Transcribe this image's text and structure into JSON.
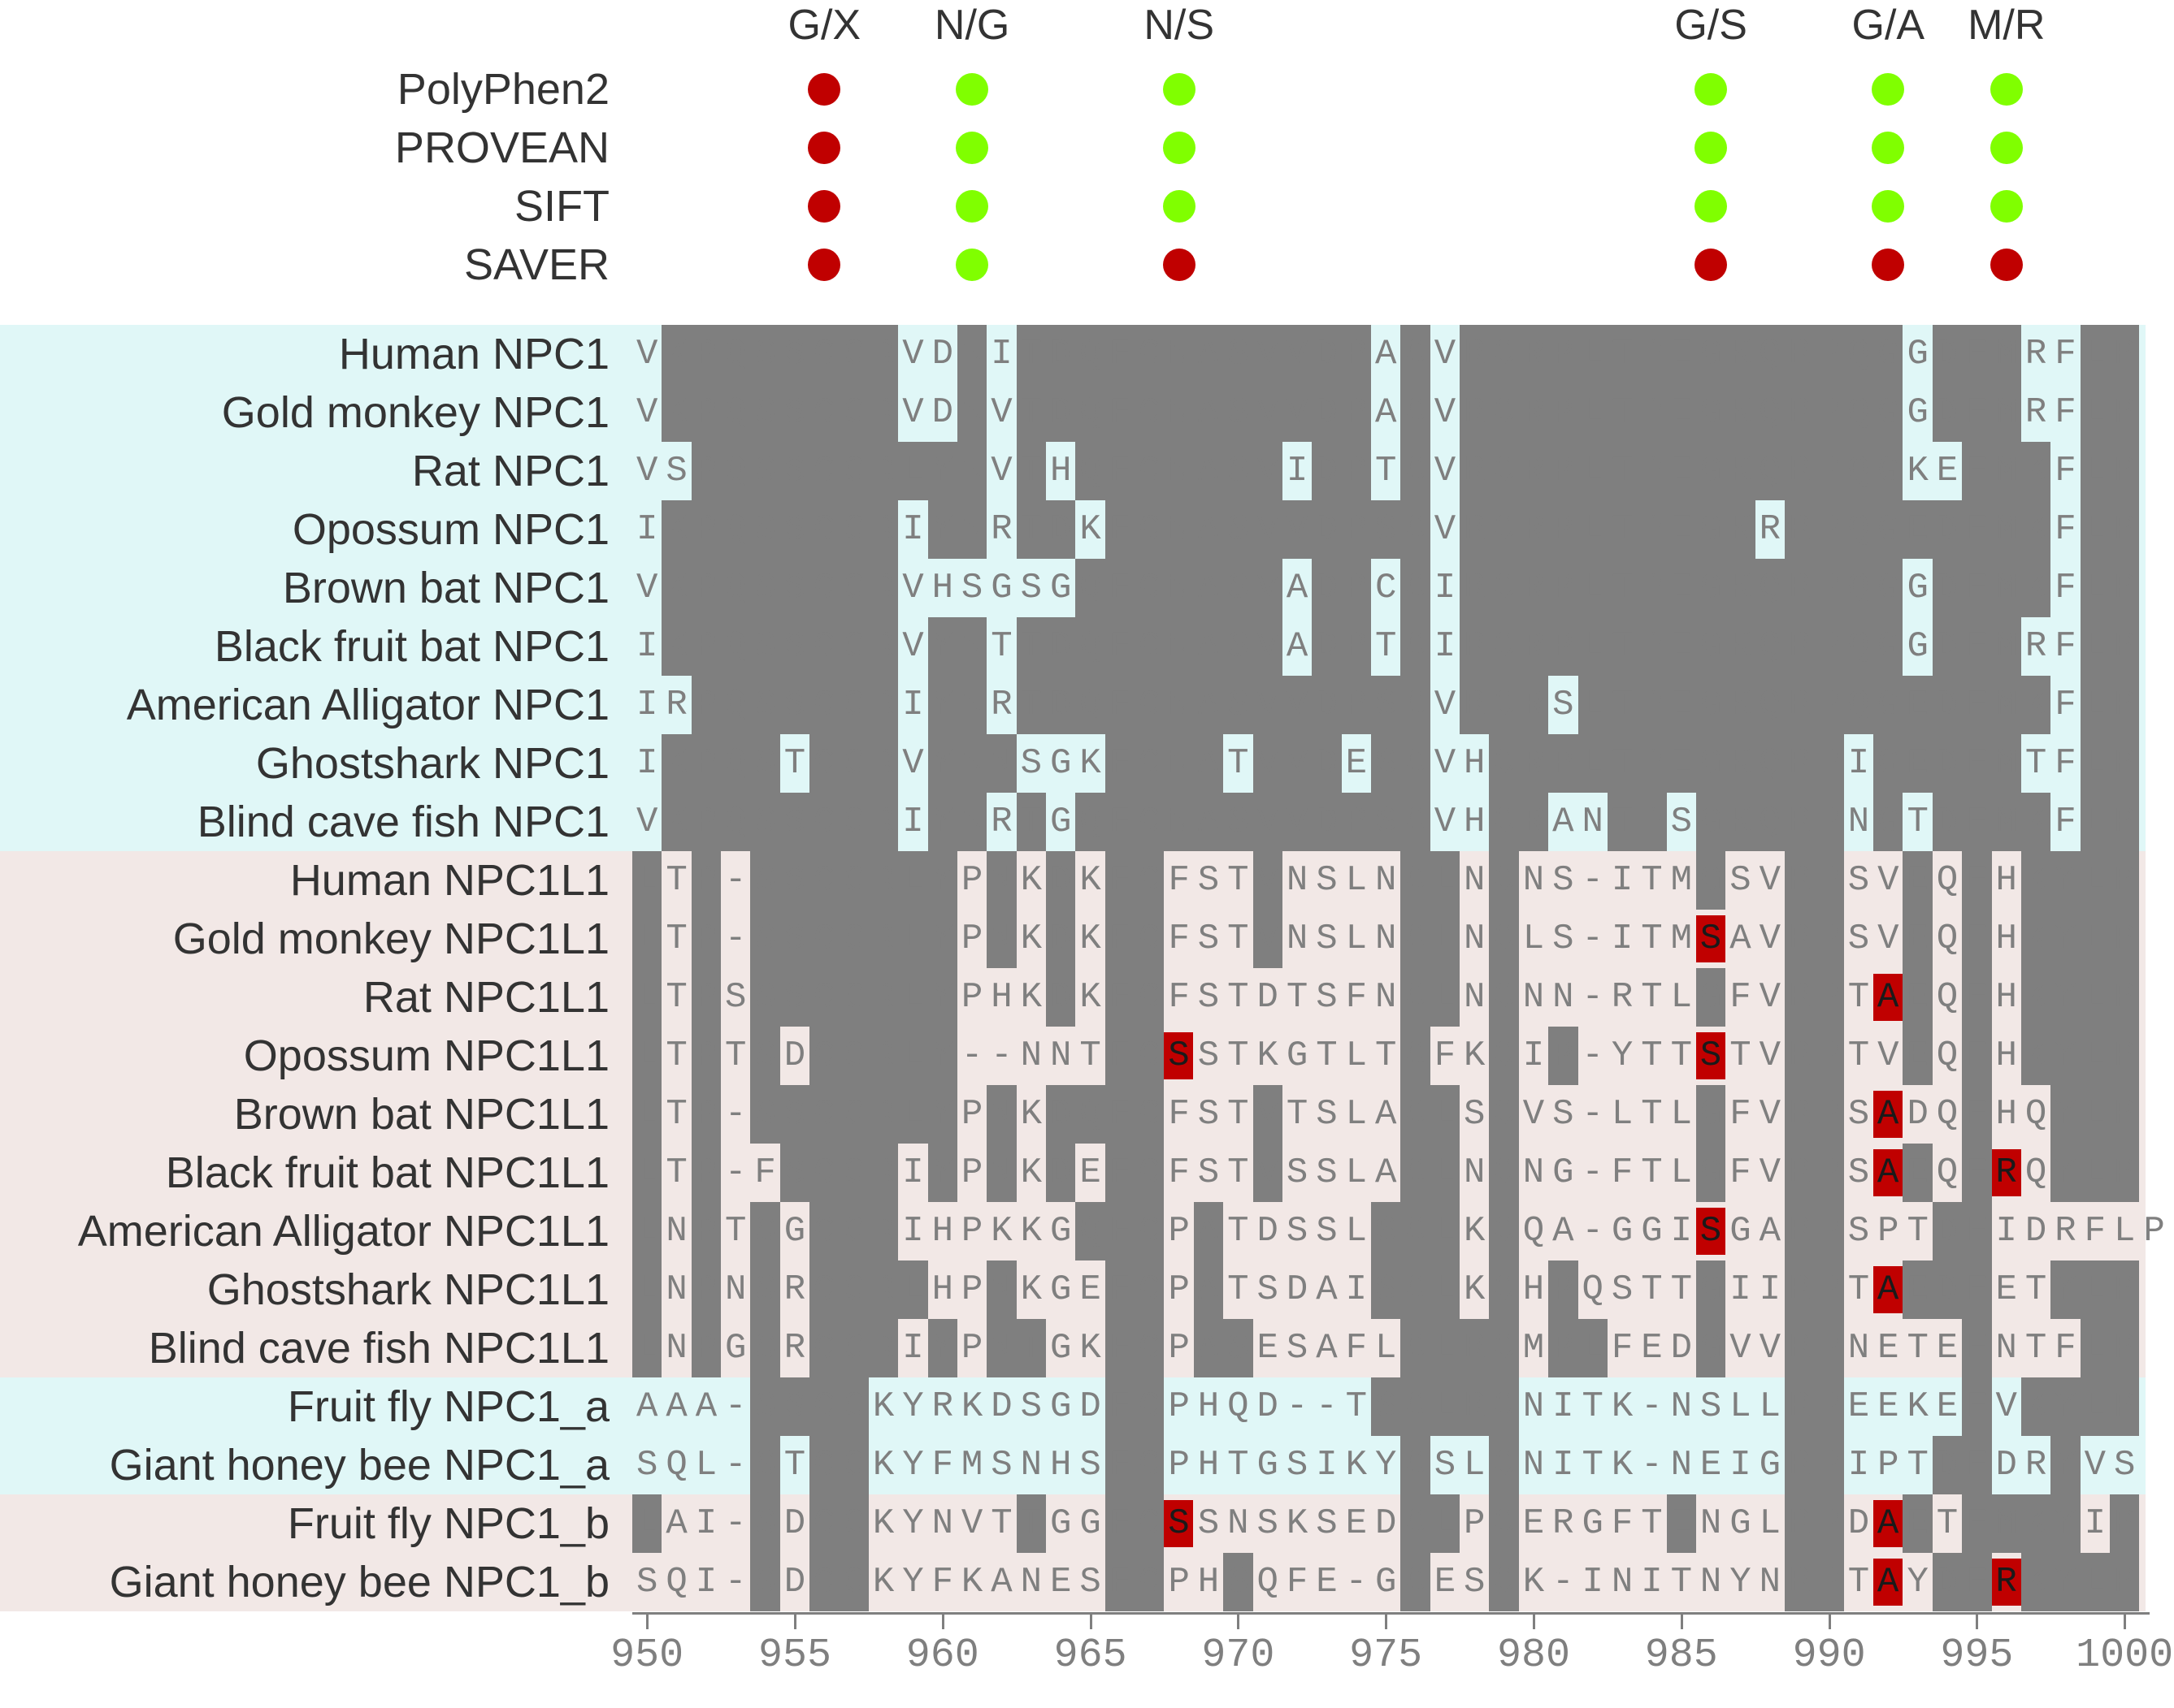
{
  "colors": {
    "damaging": "#c00000",
    "tolerated": "#80ff00",
    "conserved_bg": "#7f7f7f",
    "divergent_bg": "#e0f7f7",
    "npc1_band": "#e0f7f7",
    "npc1l1_band": "#f2e8e6",
    "npc1a_band": "#e0f7f7",
    "npc1b_band": "#f2e8e6",
    "highlight": "#c00000"
  },
  "mutations": [
    {
      "label": "G/X",
      "position": 956
    },
    {
      "label": "N/G",
      "position": 961
    },
    {
      "label": "N/S",
      "position": 968
    },
    {
      "label": "G/S",
      "position": 986
    },
    {
      "label": "G/A",
      "position": 992
    },
    {
      "label": "M/R",
      "position": 996
    }
  ],
  "predictors": [
    {
      "name": "PolyPhen2",
      "calls": [
        "damaging",
        "tolerated",
        "tolerated",
        "tolerated",
        "tolerated",
        "tolerated"
      ]
    },
    {
      "name": "PROVEAN",
      "calls": [
        "damaging",
        "tolerated",
        "tolerated",
        "tolerated",
        "tolerated",
        "tolerated"
      ]
    },
    {
      "name": "SIFT",
      "calls": [
        "damaging",
        "tolerated",
        "tolerated",
        "tolerated",
        "tolerated",
        "tolerated"
      ]
    },
    {
      "name": "SAVER",
      "calls": [
        "damaging",
        "tolerated",
        "damaging",
        "damaging",
        "damaging",
        "damaging"
      ]
    }
  ],
  "alignment": {
    "start": 950,
    "sequences": [
      {
        "name": "Human NPC1",
        "group": "npc1",
        "seq": "VKPQSSCCRVDNITDQFCNASVVDPACVRCRPLTPEGKQRPQGGDFMRFLP"
      },
      {
        "name": "Gold monkey NPC1",
        "group": "npc1",
        "seq": "VKPQSSCCRVDNVTDQFCNASVVDPACVRCRPLTPEGKQRPQGGDFMRFLP"
      },
      {
        "name": "Rat NPC1",
        "group": "npc1",
        "seq": "VSPQSSCCRLYNVTHQFCNASVIDPTCVRCRPLTPEGKQRPQGKEFMKFLP"
      },
      {
        "name": "Opossum NPC1",
        "group": "npc1",
        "seq": "IKPQSSCCRIYNRTDKFCNASVVDPSCVRCRPLTPEGKRRPQGEDFMKFLP"
      },
      {
        "name": "Brown bat NPC1",
        "group": "npc1",
        "seq": "VKPQSSCCRVHSGSGQFCNASVADPCCIRCRPLTPEGKQRPQGGDFMKFLP"
      },
      {
        "name": "Black fruit bat NPC1",
        "group": "npc1",
        "seq": "IKPQSSCCRVYNTTDQFCNASVADPTCIRCRPLTPEGKQRPQGGDFMRFLP"
      },
      {
        "name": "American Alligator NPC1",
        "group": "npc1",
        "seq": "IRPQSSCCRIYNRTDQFCNASVVDPSCVRCRSLTPEGKQRPQGEDFMKFLP"
      },
      {
        "name": "Ghostshark NPC1",
        "group": "npc1",
        "seq": "IKPQSTCCRVYNNSGKFCNATVVDESCVHCRPLTPEGKQRPIGEDFMTFLP"
      },
      {
        "name": "Blind cave fish NPC1",
        "group": "npc1",
        "seq": "VKPQSSCCRIYNRTGQFCNASVVDPSCVHCRANTPSGKQRPNGTDFMKFLP"
      },
      {
        "name": "Human NPC1L1",
        "group": "npc1l1",
        "seq": "LTP-SSCCRLYPNKDKFCFSTVNSLNCLNCNS-ITMGSVRPSVEQFHKYLP"
      },
      {
        "name": "Gold monkey NPC1L1",
        "group": "npc1l1",
        "seq": "LTP-SSCCRLYPNKDKFCFSTVNSLNCLNCLS-ITMSAVRPSVEQFHKYLP"
      },
      {
        "name": "Rat NPC1L1",
        "group": "npc1l1",
        "seq": "LTPSSSCCRLYPHKDKFCFSTDTSFNCLNCNN-RTLGFVRPTAEQFHKYLP"
      },
      {
        "name": "Opossum NPC1L1",
        "group": "npc1l1",
        "seq": "LTPTSDCCRLY--NNTFCSSTKGTLTCFKCIP-YTTSTVRPTVEQFHKYLP"
      },
      {
        "name": "Brown bat NPC1L1",
        "group": "npc1l1",
        "seq": "LTP-SSCCRLYPNKDQFCFSTVTSLACLSCVS-LTLGFVRPSADQFHQYLP"
      },
      {
        "name": "Black fruit bat NPC1L1",
        "group": "npc1l1",
        "seq": "LTP-FSCCRIYPNKDEFCFSTVSSLACLNCNG-FTLGFVRPSAEQFRQYLP"
      },
      {
        "name": "American Alligator NPC1L1",
        "group": "npc1l1",
        "seq": "LNPTSGCCRIHPKKGQFCPATDSSLSCLKCQA-GGISGARPSPTDFIDRFLP"
      },
      {
        "name": "Ghostshark NPC1L1",
        "group": "npc1l1",
        "seq": "LNPNSRCCRLHPNKGEFCPATSDAISCLKCHPQSTTGIIRPTAEDFETYLP"
      },
      {
        "name": "Blind cave fish NPC1L1",
        "group": "npc1l1",
        "seq": "LNPGSRCCRIYPNTGKFCPASESAFLCLRCMPLFEDGVVRPNETEFNTFLP"
      },
      {
        "name": "Fruit fly NPC1_a",
        "group": "npc1a",
        "seq": "AAA-SSCCKYRKDSGDFCPHQD--TSCLRCNITK-NSLLRPEEKEFVKYLP"
      },
      {
        "name": "Giant honey bee NPC1_a",
        "group": "npc1a",
        "seq": "SQL-STCCKYFMSNHSFCPHTGSIKYCSLCNITK-NEIGRPIPTDFDRYVS"
      },
      {
        "name": "Fruit fly NPC1_b",
        "group": "npc1b",
        "seq": "LAI-SDCCKYNVTTGGFCSSNSKSEDCLPCERGFTENGLRPDAETFMKYIP"
      },
      {
        "name": "Giant honey bee NPC1_b",
        "group": "npc1b",
        "seq": "SQI-SDCCKYFKANESFCPHSQFE-GCESCK-INITNYNRPTAYDFRKYLP"
      }
    ],
    "highlights": [
      {
        "row": 10,
        "position": 986,
        "residue": "S"
      },
      {
        "row": 11,
        "position": 992,
        "residue": "A"
      },
      {
        "row": 12,
        "position": 968,
        "residue": "S"
      },
      {
        "row": 12,
        "position": 986,
        "residue": "S"
      },
      {
        "row": 13,
        "position": 992,
        "residue": "A"
      },
      {
        "row": 14,
        "position": 992,
        "residue": "A"
      },
      {
        "row": 14,
        "position": 996,
        "residue": "R"
      },
      {
        "row": 15,
        "position": 986,
        "residue": "S"
      },
      {
        "row": 16,
        "position": 992,
        "residue": "A"
      },
      {
        "row": 20,
        "position": 968,
        "residue": "S"
      },
      {
        "row": 20,
        "position": 992,
        "residue": "A"
      },
      {
        "row": 21,
        "position": 992,
        "residue": "A"
      },
      {
        "row": 21,
        "position": 996,
        "residue": "R"
      }
    ]
  },
  "axis": {
    "ticks": [
      "950",
      "955",
      "960",
      "965",
      "970",
      "975",
      "980",
      "985",
      "990",
      "995",
      "1000"
    ]
  }
}
